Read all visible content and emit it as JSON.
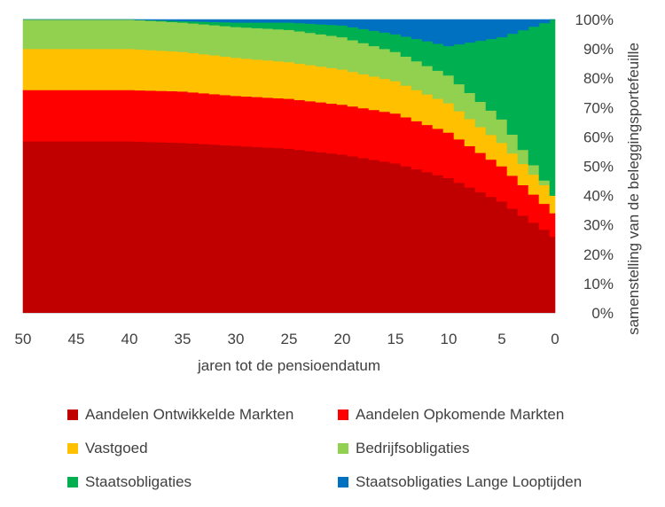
{
  "chart_data": {
    "type": "area",
    "stacked": true,
    "x": [
      50,
      45,
      40,
      35,
      30,
      25,
      20,
      15,
      10,
      5,
      0
    ],
    "xlabel": "jaren tot de pensioendatum",
    "ylabel": "samenstelling van de beleggingsportefeuille",
    "x_ticks": [
      "50",
      "45",
      "40",
      "35",
      "30",
      "25",
      "20",
      "15",
      "10",
      "5",
      "0"
    ],
    "y_ticks": [
      "0%",
      "10%",
      "20%",
      "30%",
      "40%",
      "50%",
      "60%",
      "70%",
      "80%",
      "90%",
      "100%"
    ],
    "ylim": [
      0,
      100
    ],
    "y_axis_position": "right",
    "x_reversed": true,
    "legend_position": "bottom",
    "series": [
      {
        "name": "Aandelen Ontwikkelde Markten",
        "color": "#C00000",
        "values": [
          58.5,
          58.5,
          58.5,
          58,
          57,
          56,
          54,
          51,
          46,
          38,
          26
        ]
      },
      {
        "name": "Aandelen Opkomende Markten",
        "color": "#FF0000",
        "values": [
          17.5,
          17.5,
          17.5,
          17.5,
          17,
          17,
          17,
          17,
          15.5,
          12,
          8
        ]
      },
      {
        "name": "Vastgoed",
        "color": "#FFC000",
        "values": [
          14,
          14,
          14,
          13.5,
          13,
          12.5,
          12,
          11,
          10,
          8,
          6
        ]
      },
      {
        "name": "Bedrijfsobligaties",
        "color": "#92D050",
        "values": [
          10,
          10,
          10,
          10,
          10.5,
          11,
          11,
          10,
          9.5,
          8,
          0
        ]
      },
      {
        "name": "Staatsobligaties",
        "color": "#00B050",
        "values": [
          0,
          0,
          0,
          0.5,
          1.5,
          2.5,
          4,
          6,
          10,
          28,
          60
        ]
      },
      {
        "name": "Staatsobligaties Lange Looptijden",
        "color": "#0070C0",
        "values": [
          0,
          0,
          0,
          0.5,
          1,
          1,
          2,
          5,
          9,
          6,
          0
        ]
      }
    ]
  }
}
